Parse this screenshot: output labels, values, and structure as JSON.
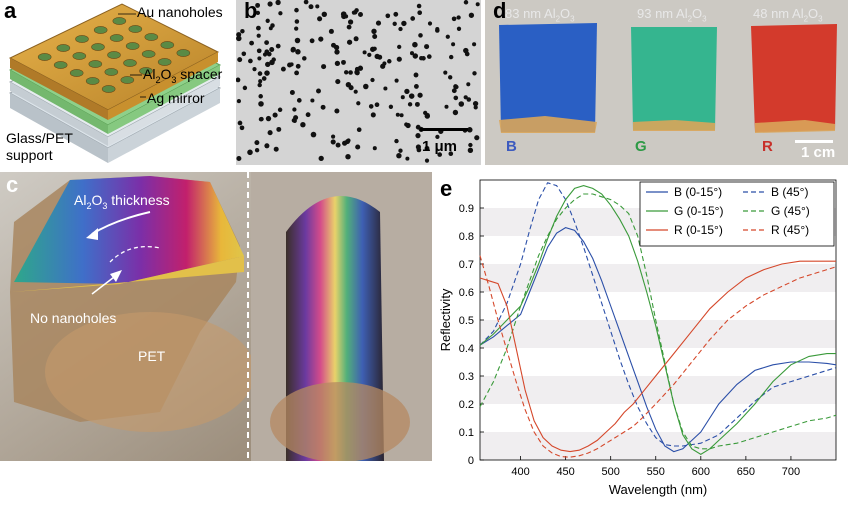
{
  "panels": {
    "a": {
      "label": "a",
      "callouts": {
        "au": "Au nanoholes",
        "al2o3_main": "Al",
        "al2o3_sub1": "2",
        "al2o3_mid": "O",
        "al2o3_sub2": "3",
        "al2o3_tail": " spacer",
        "ag": "Ag mirror",
        "glass1": "Glass/PET",
        "glass2": "support"
      }
    },
    "b": {
      "label": "b",
      "scalebar": "1 μm"
    },
    "c": {
      "label": "c",
      "thickness_main": "Al",
      "thickness_sub1": "2",
      "thickness_mid": "O",
      "thickness_sub2": "3",
      "thickness_tail": " thickness",
      "no_nanoholes": "No nanoholes",
      "pet": "PET"
    },
    "d": {
      "label": "d",
      "samples": [
        {
          "thick": "83 nm Al",
          "s1": "2",
          "o": "O",
          "s2": "3",
          "letter": "B",
          "color": "#2a5fc4",
          "letter_color": "#3d5bbf"
        },
        {
          "thick": "93 nm Al",
          "s1": "2",
          "o": "O",
          "s2": "3",
          "letter": "G",
          "color": "#35b58f",
          "letter_color": "#2e9a46"
        },
        {
          "thick": "48 nm Al",
          "s1": "2",
          "o": "O",
          "s2": "3",
          "letter": "R",
          "color": "#d33a2c",
          "letter_color": "#c8302a"
        }
      ],
      "scalebar": "1 cm"
    },
    "e": {
      "label": "e"
    }
  },
  "chart_data": {
    "type": "line",
    "xlabel": "Wavelength  (nm)",
    "ylabel": "Reflectivity",
    "xlim": [
      355,
      750
    ],
    "ylim": [
      0,
      1
    ],
    "xticks": [
      400,
      450,
      500,
      550,
      600,
      650,
      700
    ],
    "yticks": [
      0,
      0.1,
      0.2,
      0.3,
      0.4,
      0.5,
      0.6,
      0.7,
      0.8,
      0.9
    ],
    "legend_position": "top-right",
    "series": [
      {
        "name": "B (0-15°)",
        "color": "#2b4fa8",
        "style": "solid",
        "x": [
          355,
          370,
          385,
          400,
          410,
          420,
          430,
          440,
          450,
          460,
          470,
          480,
          490,
          500,
          510,
          520,
          530,
          540,
          550,
          560,
          570,
          580,
          590,
          600,
          610,
          620,
          640,
          660,
          680,
          700,
          720,
          740,
          750
        ],
        "y": [
          0.41,
          0.44,
          0.48,
          0.52,
          0.6,
          0.68,
          0.76,
          0.81,
          0.83,
          0.82,
          0.78,
          0.72,
          0.64,
          0.55,
          0.46,
          0.37,
          0.28,
          0.19,
          0.11,
          0.05,
          0.03,
          0.04,
          0.07,
          0.1,
          0.15,
          0.2,
          0.27,
          0.32,
          0.34,
          0.35,
          0.35,
          0.345,
          0.34
        ]
      },
      {
        "name": "B (45°)",
        "color": "#2b4fa8",
        "style": "dashed",
        "x": [
          355,
          370,
          385,
          400,
          410,
          420,
          430,
          440,
          450,
          460,
          470,
          480,
          490,
          500,
          510,
          520,
          530,
          540,
          550,
          560,
          570,
          580,
          600,
          620,
          640,
          660,
          680,
          700,
          720,
          740,
          750
        ],
        "y": [
          0.41,
          0.46,
          0.56,
          0.7,
          0.82,
          0.93,
          0.99,
          0.98,
          0.93,
          0.85,
          0.76,
          0.66,
          0.56,
          0.46,
          0.36,
          0.27,
          0.19,
          0.13,
          0.08,
          0.055,
          0.05,
          0.05,
          0.06,
          0.09,
          0.15,
          0.21,
          0.26,
          0.28,
          0.3,
          0.32,
          0.33
        ]
      },
      {
        "name": "G (0-15°)",
        "color": "#3a9a3a",
        "style": "solid",
        "x": [
          355,
          370,
          385,
          400,
          410,
          420,
          430,
          440,
          450,
          460,
          470,
          480,
          490,
          500,
          510,
          520,
          530,
          540,
          550,
          560,
          570,
          580,
          590,
          600,
          610,
          620,
          640,
          660,
          680,
          700,
          720,
          740,
          750
        ],
        "y": [
          0.41,
          0.45,
          0.5,
          0.55,
          0.62,
          0.7,
          0.79,
          0.87,
          0.93,
          0.97,
          0.98,
          0.97,
          0.95,
          0.91,
          0.86,
          0.8,
          0.71,
          0.6,
          0.48,
          0.34,
          0.2,
          0.09,
          0.04,
          0.02,
          0.04,
          0.07,
          0.13,
          0.2,
          0.28,
          0.34,
          0.37,
          0.38,
          0.38
        ]
      },
      {
        "name": "G (45°)",
        "color": "#3a9a3a",
        "style": "dashed",
        "x": [
          355,
          370,
          385,
          400,
          410,
          420,
          430,
          440,
          450,
          460,
          470,
          480,
          490,
          500,
          510,
          520,
          530,
          540,
          550,
          560,
          570,
          580,
          590,
          600,
          610,
          620,
          640,
          660,
          680,
          700,
          720,
          740,
          750
        ],
        "y": [
          0.19,
          0.28,
          0.4,
          0.55,
          0.64,
          0.73,
          0.8,
          0.86,
          0.9,
          0.93,
          0.95,
          0.95,
          0.94,
          0.93,
          0.91,
          0.88,
          0.8,
          0.66,
          0.5,
          0.35,
          0.2,
          0.1,
          0.05,
          0.04,
          0.04,
          0.05,
          0.06,
          0.08,
          0.1,
          0.12,
          0.14,
          0.15,
          0.16
        ]
      },
      {
        "name": "R (0-15°)",
        "color": "#d5482b",
        "style": "solid",
        "x": [
          355,
          365,
          375,
          385,
          395,
          405,
          415,
          425,
          435,
          445,
          455,
          465,
          475,
          485,
          495,
          505,
          515,
          525,
          535,
          550,
          570,
          590,
          610,
          630,
          650,
          670,
          690,
          710,
          730,
          750
        ],
        "y": [
          0.65,
          0.64,
          0.63,
          0.55,
          0.4,
          0.25,
          0.14,
          0.08,
          0.05,
          0.035,
          0.03,
          0.035,
          0.05,
          0.07,
          0.1,
          0.13,
          0.17,
          0.2,
          0.24,
          0.3,
          0.38,
          0.46,
          0.54,
          0.6,
          0.65,
          0.68,
          0.7,
          0.71,
          0.71,
          0.71
        ]
      },
      {
        "name": "R (45°)",
        "color": "#d5482b",
        "style": "dashed",
        "x": [
          355,
          365,
          375,
          385,
          395,
          405,
          415,
          425,
          435,
          445,
          455,
          465,
          475,
          485,
          495,
          505,
          515,
          525,
          535,
          550,
          570,
          590,
          610,
          630,
          650,
          670,
          690,
          710,
          730,
          750
        ],
        "y": [
          0.73,
          0.62,
          0.5,
          0.39,
          0.28,
          0.18,
          0.1,
          0.05,
          0.025,
          0.012,
          0.01,
          0.015,
          0.025,
          0.04,
          0.06,
          0.08,
          0.1,
          0.12,
          0.15,
          0.2,
          0.27,
          0.35,
          0.43,
          0.5,
          0.55,
          0.59,
          0.62,
          0.65,
          0.67,
          0.69
        ]
      }
    ]
  }
}
